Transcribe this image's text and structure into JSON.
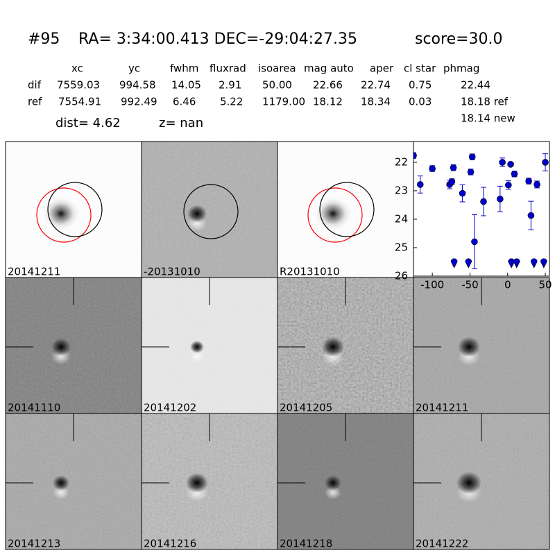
{
  "header": {
    "object_id": "#95",
    "coords": "RA= 3:34:00.413 DEC=-29:04:27.35",
    "score": "score=30.0"
  },
  "table": {
    "columns": [
      "xc",
      "yc",
      "fwhm",
      "fluxrad",
      "isoarea",
      "mag auto",
      "aper",
      "cl star",
      "phmag"
    ],
    "rows": [
      [
        "dif",
        "7559.03",
        "994.58",
        "14.05",
        "2.91",
        "50.00",
        "22.66",
        "22.74",
        "0.75",
        "22.44"
      ],
      [
        "ref",
        "7554.91",
        "992.49",
        "6.46",
        "5.22",
        "1179.00",
        "18.12",
        "18.34",
        "0.03",
        "18.18 ref"
      ]
    ],
    "extra": "18.14 new"
  },
  "dist": "dist=  4.62",
  "z": "z=   nan",
  "stamps": [
    {
      "label": "20141211"
    },
    {
      "label": "-20131010"
    },
    {
      "label": "R20131010"
    },
    {
      "label": "20141110"
    },
    {
      "label": "20141202"
    },
    {
      "label": "20141205"
    },
    {
      "label": "20141211",
      "color": "#ff0000"
    },
    {
      "label": "20141213"
    },
    {
      "label": "20141216"
    },
    {
      "label": "20141218"
    },
    {
      "label": "20141222"
    }
  ],
  "chart_data": {
    "type": "scatter",
    "color": "#0000cc",
    "invert_y": true,
    "x": [
      -125,
      -116,
      -100,
      -77,
      -74,
      -72,
      -60,
      -49,
      -47,
      -44,
      -32,
      -10,
      -7,
      1,
      4,
      9,
      28,
      31,
      39,
      50
    ],
    "values": [
      21.76,
      22.78,
      22.22,
      22.78,
      22.68,
      22.19,
      23.09,
      22.34,
      21.81,
      24.79,
      23.38,
      23.29,
      22.0,
      22.8,
      22.07,
      22.41,
      22.66,
      23.87,
      22.78,
      22.0
    ],
    "errors": [
      0.1,
      0.3,
      0.1,
      0.15,
      0.1,
      0.1,
      0.3,
      0.1,
      0.1,
      0.95,
      0.5,
      0.45,
      0.15,
      0.15,
      0.05,
      0.1,
      0.1,
      0.5,
      0.12,
      0.3
    ],
    "upper_limits": {
      "x": [
        -71,
        -52,
        5,
        12,
        35,
        48
      ],
      "values": [
        25.54,
        25.54,
        25.54,
        25.54,
        25.54,
        25.54
      ]
    },
    "xlim": [
      -125,
      55.5
    ],
    "ylim": [
      21.27,
      26
    ],
    "xticks": [
      -100,
      -50,
      0,
      50
    ],
    "yticks": [
      22,
      23,
      24,
      25,
      26
    ]
  }
}
